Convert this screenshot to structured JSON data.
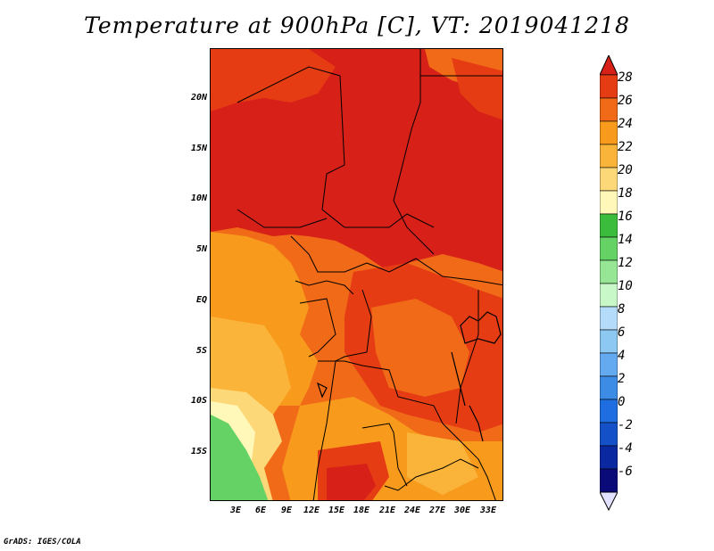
{
  "title": "Temperature at 900hPa [C], VT: 2019041218",
  "credit": "GrADS: IGES/COLA",
  "lat_labels": [
    "20N",
    "15N",
    "10N",
    "5N",
    "EQ",
    "5S",
    "10S",
    "15S"
  ],
  "lon_labels": [
    "3E",
    "6E",
    "9E",
    "12E",
    "15E",
    "18E",
    "21E",
    "24E",
    "27E",
    "30E",
    "33E"
  ],
  "colorbar": {
    "labels": [
      "28",
      "26",
      "24",
      "22",
      "20",
      "18",
      "16",
      "14",
      "12",
      "10",
      "8",
      "6",
      "4",
      "2",
      "0",
      "-2",
      "-4",
      "-6"
    ],
    "colors": [
      "#d62018",
      "#e63c14",
      "#f06a18",
      "#f89a1c",
      "#fab43a",
      "#fcd878",
      "#fff8b8",
      "#3cbc3c",
      "#64d264",
      "#96e696",
      "#c8f8c8",
      "#b4dcfa",
      "#8cc8f2",
      "#64aaf0",
      "#3c8ce6",
      "#1e6ee1",
      "#1450c8",
      "#0a28a0",
      "#0a0a78",
      "#e1e1ff"
    ]
  },
  "icons": {
    "colorbar_top": "triangle-up",
    "colorbar_bottom": "triangle-down"
  }
}
